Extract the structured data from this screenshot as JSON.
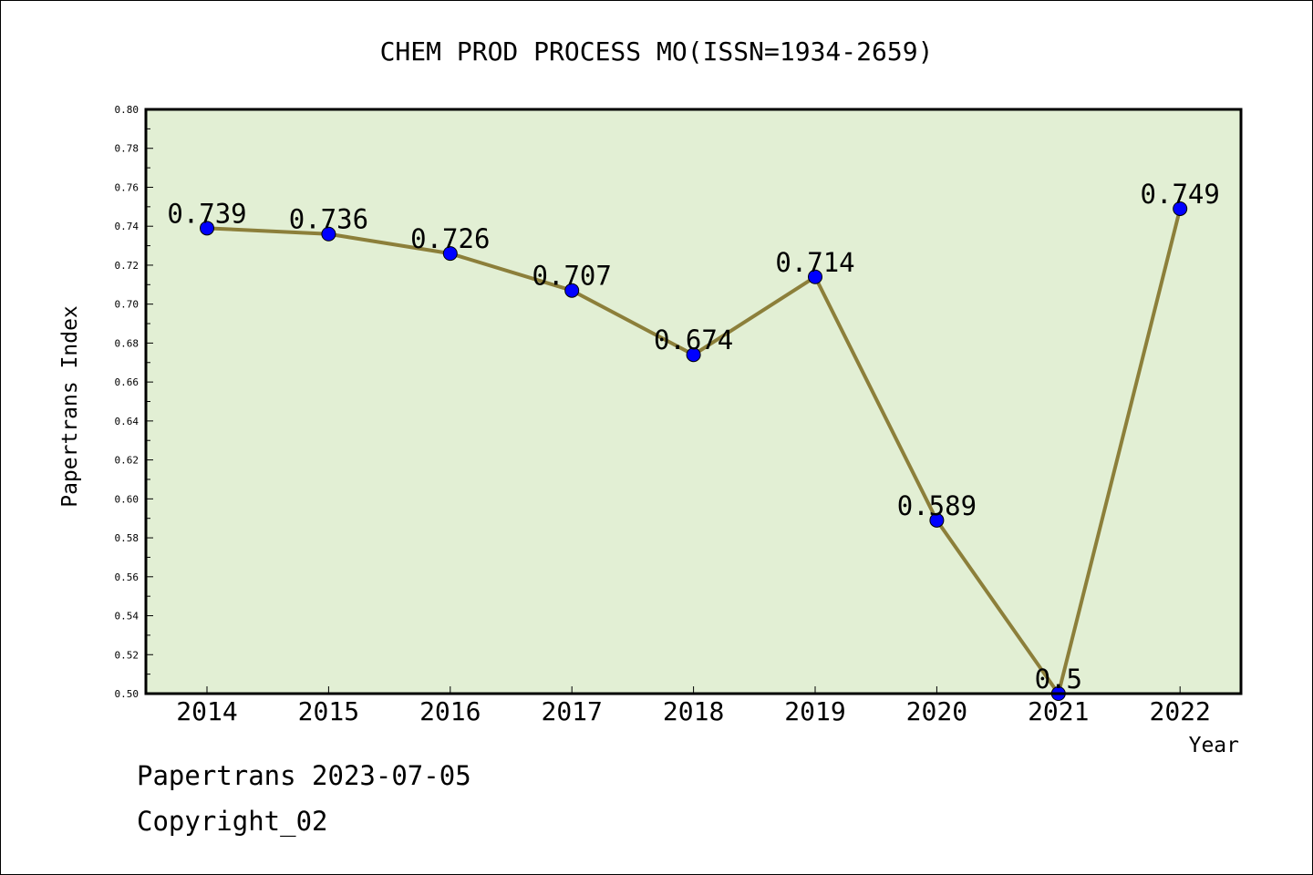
{
  "chart_data": {
    "type": "line",
    "title": "CHEM PROD PROCESS MO(ISSN=1934-2659)",
    "xlabel": "Year",
    "ylabel": "Papertrans Index",
    "categories": [
      "2014",
      "2015",
      "2016",
      "2017",
      "2018",
      "2019",
      "2020",
      "2021",
      "2022"
    ],
    "values": [
      0.739,
      0.736,
      0.726,
      0.707,
      0.674,
      0.714,
      0.589,
      0.5,
      0.749
    ],
    "data_labels": [
      "0.739",
      "0.736",
      "0.726",
      "0.707",
      "0.674",
      "0.714",
      "0.589",
      "0.5",
      "0.749"
    ],
    "ylim": [
      0.5,
      0.8
    ],
    "yticks": [
      "0.50",
      "0.52",
      "0.54",
      "0.56",
      "0.58",
      "0.60",
      "0.62",
      "0.64",
      "0.66",
      "0.68",
      "0.70",
      "0.72",
      "0.74",
      "0.76",
      "0.78",
      "0.80"
    ],
    "grid": false,
    "legend": "none",
    "colors": {
      "plot_background": "#e2efd4",
      "line": "#8c7f3a",
      "marker": "#0000ff"
    }
  },
  "footer": {
    "line1": "Papertrans 2023-07-05",
    "line2": "Copyright_02"
  }
}
